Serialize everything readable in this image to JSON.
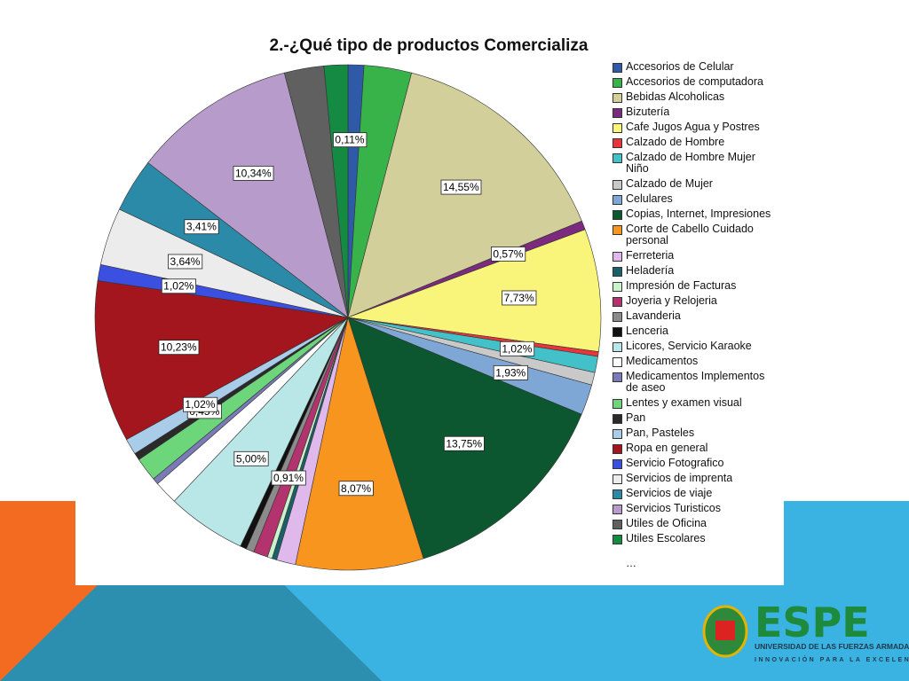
{
  "chart_data": {
    "type": "pie",
    "title": "2.-¿Qué tipo de productos Comercializa",
    "categories": [
      "Accesorios de Celular",
      "Accesorios de computadora",
      "Bebidas Alcoholicas",
      "Bizutería",
      "Cafe Jugos Agua y Postres",
      "Calzado de Hombre",
      "Calzado de Hombre Mujer Niño",
      "Calzado de Mujer",
      "Celulares",
      "Copias, Internet, Impresiones",
      "Corte de Cabello Cuidado personal",
      "Ferreteria",
      "Heladería",
      "Impresión de Facturas",
      "Joyeria y Relojeria",
      "Lavanderia",
      "Lenceria",
      "Licores, Servicio Karaoke",
      "Medicamentos",
      "Medicamentos Implementos de aseo",
      "Lentes y examen visual",
      "Pan",
      "Pan, Pasteles",
      "Ropa en general",
      "Servicio Fotografico",
      "Servicios de imprenta",
      "Servicios de viaje",
      "Servicios Turisticos",
      "Utiles de Oficina",
      "Utiles Escolares"
    ],
    "values": [
      1.0,
      3.0,
      14.55,
      0.57,
      7.73,
      0.3,
      1.02,
      0.8,
      1.93,
      13.75,
      8.07,
      1.2,
      0.3,
      0.3,
      0.91,
      0.5,
      0.4,
      5.0,
      1.5,
      0.4,
      1.5,
      0.45,
      1.02,
      10.23,
      1.02,
      3.64,
      3.41,
      10.34,
      2.5,
      1.5
    ],
    "value_labels": [
      null,
      null,
      "14,55%",
      "0,57%",
      "7,73%",
      null,
      "1,02%",
      null,
      "1,93%",
      "13,75%",
      "8,07%",
      null,
      null,
      null,
      "0,91%",
      null,
      null,
      "5,00%",
      null,
      null,
      null,
      "0,45%",
      "1,02%",
      "10,23%",
      "1,02%",
      "3,64%",
      "3,41%",
      "10,34%",
      null,
      null
    ],
    "extra_label": "0,11%",
    "colors": [
      "#2e5aa8",
      "#37b34a",
      "#d3cf9a",
      "#7b2a7e",
      "#f8f57a",
      "#e8343a",
      "#43c1c9",
      "#c9c9c9",
      "#7fa7d6",
      "#0c5630",
      "#f7951e",
      "#dfb9ec",
      "#1a6068",
      "#ccf2cc",
      "#b3336e",
      "#8b8b8b",
      "#111111",
      "#b9e6e6",
      "#ffffff",
      "#7a7ab8",
      "#6ed67a",
      "#2a2a2a",
      "#a9cce8",
      "#a3161d",
      "#3b4fe0",
      "#ececec",
      "#2a8aa8",
      "#b79ccb",
      "#606060",
      "#148a42"
    ],
    "legend_more": "…"
  },
  "branding": {
    "name": "ESPE",
    "university": "UNIVERSIDAD DE LAS FUERZAS ARMADAS",
    "motto": "INNOVACIÓN PARA LA EXCELENCIA"
  }
}
